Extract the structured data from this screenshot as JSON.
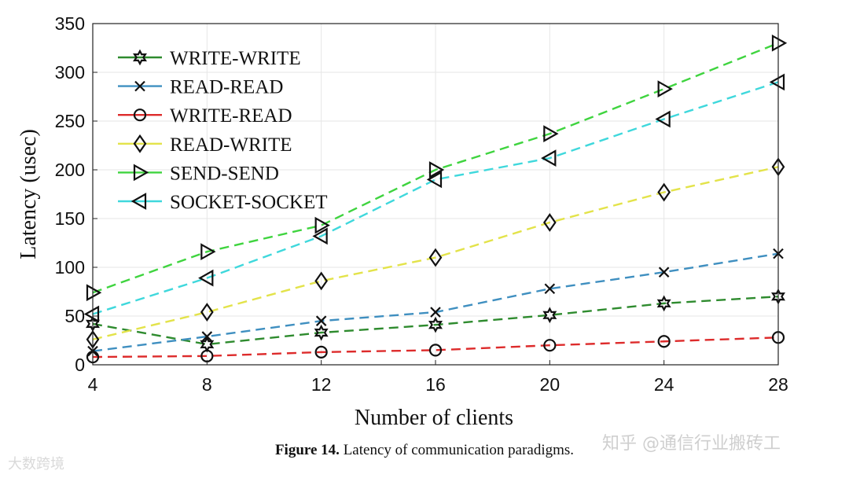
{
  "chart_data": {
    "type": "line",
    "title": "",
    "xlabel": "Number of clients",
    "ylabel": "Latency (usec)",
    "x": [
      4,
      8,
      12,
      16,
      20,
      24,
      28
    ],
    "xlim": [
      4,
      28
    ],
    "ylim": [
      0,
      350
    ],
    "yticks": [
      0,
      50,
      100,
      150,
      200,
      250,
      300,
      350
    ],
    "xticks": [
      4,
      8,
      12,
      16,
      20,
      24,
      28
    ],
    "grid": true,
    "legend_position": "top-left",
    "series": [
      {
        "name": "WRITE-WRITE",
        "color": "#2e8b2e",
        "marker": "hexagram",
        "values": [
          42,
          21,
          33,
          41,
          51,
          63,
          70
        ]
      },
      {
        "name": "READ-READ",
        "color": "#3f8fc0",
        "marker": "x",
        "values": [
          14,
          29,
          45,
          54,
          78,
          95,
          114
        ]
      },
      {
        "name": "WRITE-READ",
        "color": "#dd2b2b",
        "marker": "circle",
        "values": [
          8,
          9,
          13,
          15,
          20,
          24,
          28
        ]
      },
      {
        "name": "READ-WRITE",
        "color": "#e3e34a",
        "marker": "diamond",
        "values": [
          26,
          54,
          86,
          110,
          146,
          177,
          203
        ]
      },
      {
        "name": "SEND-SEND",
        "color": "#3fd43f",
        "marker": "triangle-right",
        "values": [
          74,
          116,
          143,
          200,
          237,
          283,
          330
        ]
      },
      {
        "name": "SOCKET-SOCKET",
        "color": "#3fd8dc",
        "marker": "triangle-left",
        "values": [
          52,
          89,
          132,
          190,
          212,
          252,
          290
        ]
      }
    ]
  },
  "caption": {
    "label": "Figure 14.",
    "text": "Latency of communication paradigms."
  },
  "watermarks": {
    "left": "大数跨境",
    "right": "知乎 @通信行业搬砖工"
  }
}
